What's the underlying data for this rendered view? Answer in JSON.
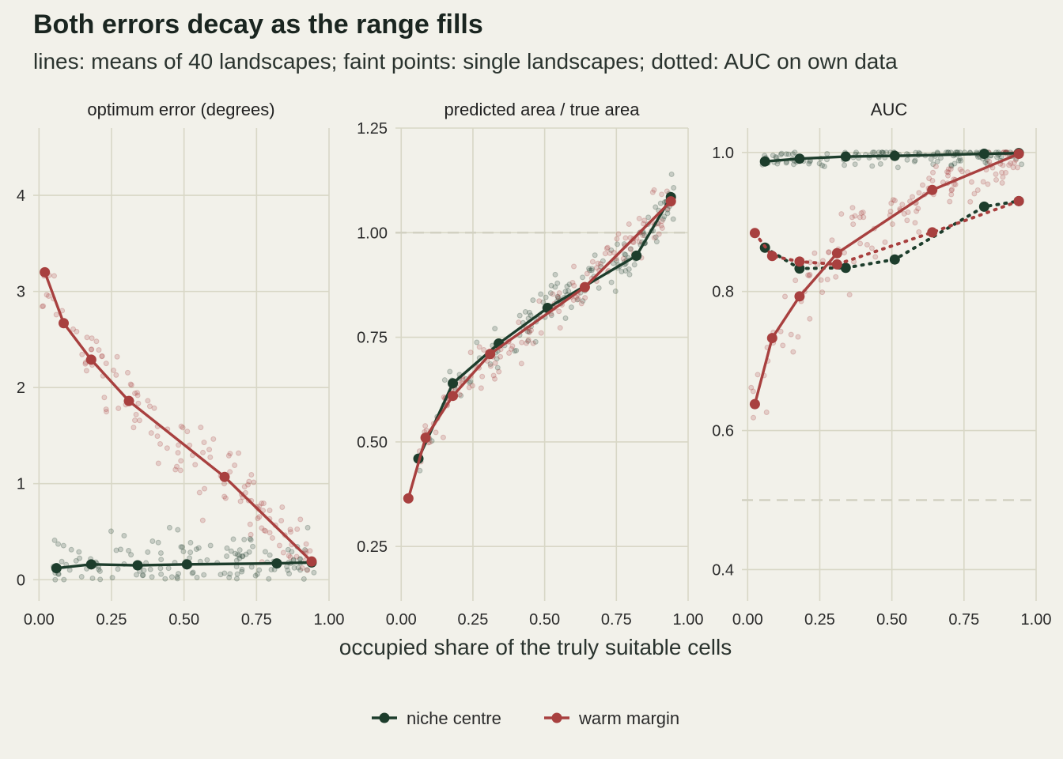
{
  "title": "Both errors decay as the range fills",
  "subtitle": "lines: means of 40 landscapes; faint points: single landscapes; dotted: AUC on own data",
  "colors": {
    "niche_centre": "#1d3d2c",
    "warm_margin": "#a8403f",
    "grid": "#d8d7c6",
    "ref": "#d2d1c2",
    "background": "#f2f1ea"
  },
  "chart_data": {
    "type": "line",
    "xlabel": "occupied share of the truly suitable cells",
    "legend": {
      "position": "bottom",
      "entries": [
        "niche centre",
        "warm margin"
      ]
    },
    "panels": [
      {
        "title": "optimum error (degrees)",
        "xlim": [
          -0.02,
          1.0
        ],
        "ylim": [
          -0.22,
          4.7
        ],
        "xticks": [
          "0.00",
          "0.25",
          "0.50",
          "0.75",
          "1.00"
        ],
        "yticks": [
          "0",
          "1",
          "2",
          "3",
          "4"
        ],
        "reference": null,
        "series": [
          {
            "name": "niche centre",
            "style": "solid",
            "x": [
              0.06,
              0.18,
              0.34,
              0.51,
              0.82,
              0.94
            ],
            "y": [
              0.12,
              0.16,
              0.15,
              0.16,
              0.17,
              0.18
            ]
          },
          {
            "name": "warm margin",
            "style": "solid",
            "x": [
              0.02,
              0.085,
              0.18,
              0.31,
              0.64,
              0.94
            ],
            "y": [
              3.2,
              2.67,
              2.29,
              1.86,
              1.07,
              0.19
            ]
          }
        ]
      },
      {
        "title": "predicted area / true area",
        "xlim": [
          -0.02,
          1.0
        ],
        "ylim": [
          0.12,
          1.25
        ],
        "xticks": [
          "0.00",
          "0.25",
          "0.50",
          "0.75",
          "1.00"
        ],
        "yticks": [
          "0.25",
          "0.50",
          "0.75",
          "1.00",
          "1.25"
        ],
        "reference": 1.0,
        "series": [
          {
            "name": "niche centre",
            "style": "solid",
            "x": [
              0.06,
              0.18,
              0.34,
              0.51,
              0.82,
              0.94
            ],
            "y": [
              0.46,
              0.64,
              0.735,
              0.82,
              0.945,
              1.085
            ]
          },
          {
            "name": "warm margin",
            "style": "solid",
            "x": [
              0.025,
              0.085,
              0.18,
              0.31,
              0.64,
              0.94
            ],
            "y": [
              0.365,
              0.51,
              0.61,
              0.71,
              0.87,
              1.075
            ]
          }
        ]
      },
      {
        "title": "AUC",
        "xlim": [
          -0.02,
          1.0
        ],
        "ylim": [
          0.355,
          1.035
        ],
        "xticks": [
          "0.00",
          "0.25",
          "0.50",
          "0.75",
          "1.00"
        ],
        "yticks": [
          "0.4",
          "0.6",
          "0.8",
          "1.0"
        ],
        "reference": 0.5,
        "series": [
          {
            "name": "niche centre",
            "style": "solid",
            "x": [
              0.06,
              0.18,
              0.34,
              0.51,
              0.82,
              0.94
            ],
            "y": [
              0.987,
              0.991,
              0.994,
              0.995,
              0.998,
              0.999
            ]
          },
          {
            "name": "warm margin",
            "style": "solid",
            "x": [
              0.025,
              0.085,
              0.18,
              0.31,
              0.64,
              0.94
            ],
            "y": [
              0.638,
              0.733,
              0.793,
              0.855,
              0.946,
              0.998
            ]
          },
          {
            "name": "niche centre",
            "style": "dotted",
            "x": [
              0.06,
              0.18,
              0.34,
              0.51,
              0.82,
              0.94
            ],
            "y": [
              0.863,
              0.833,
              0.834,
              0.846,
              0.922,
              0.93
            ]
          },
          {
            "name": "warm margin",
            "style": "dotted",
            "x": [
              0.025,
              0.085,
              0.18,
              0.31,
              0.64,
              0.94
            ],
            "y": [
              0.884,
              0.851,
              0.843,
              0.839,
              0.885,
              0.93
            ]
          }
        ]
      }
    ]
  }
}
